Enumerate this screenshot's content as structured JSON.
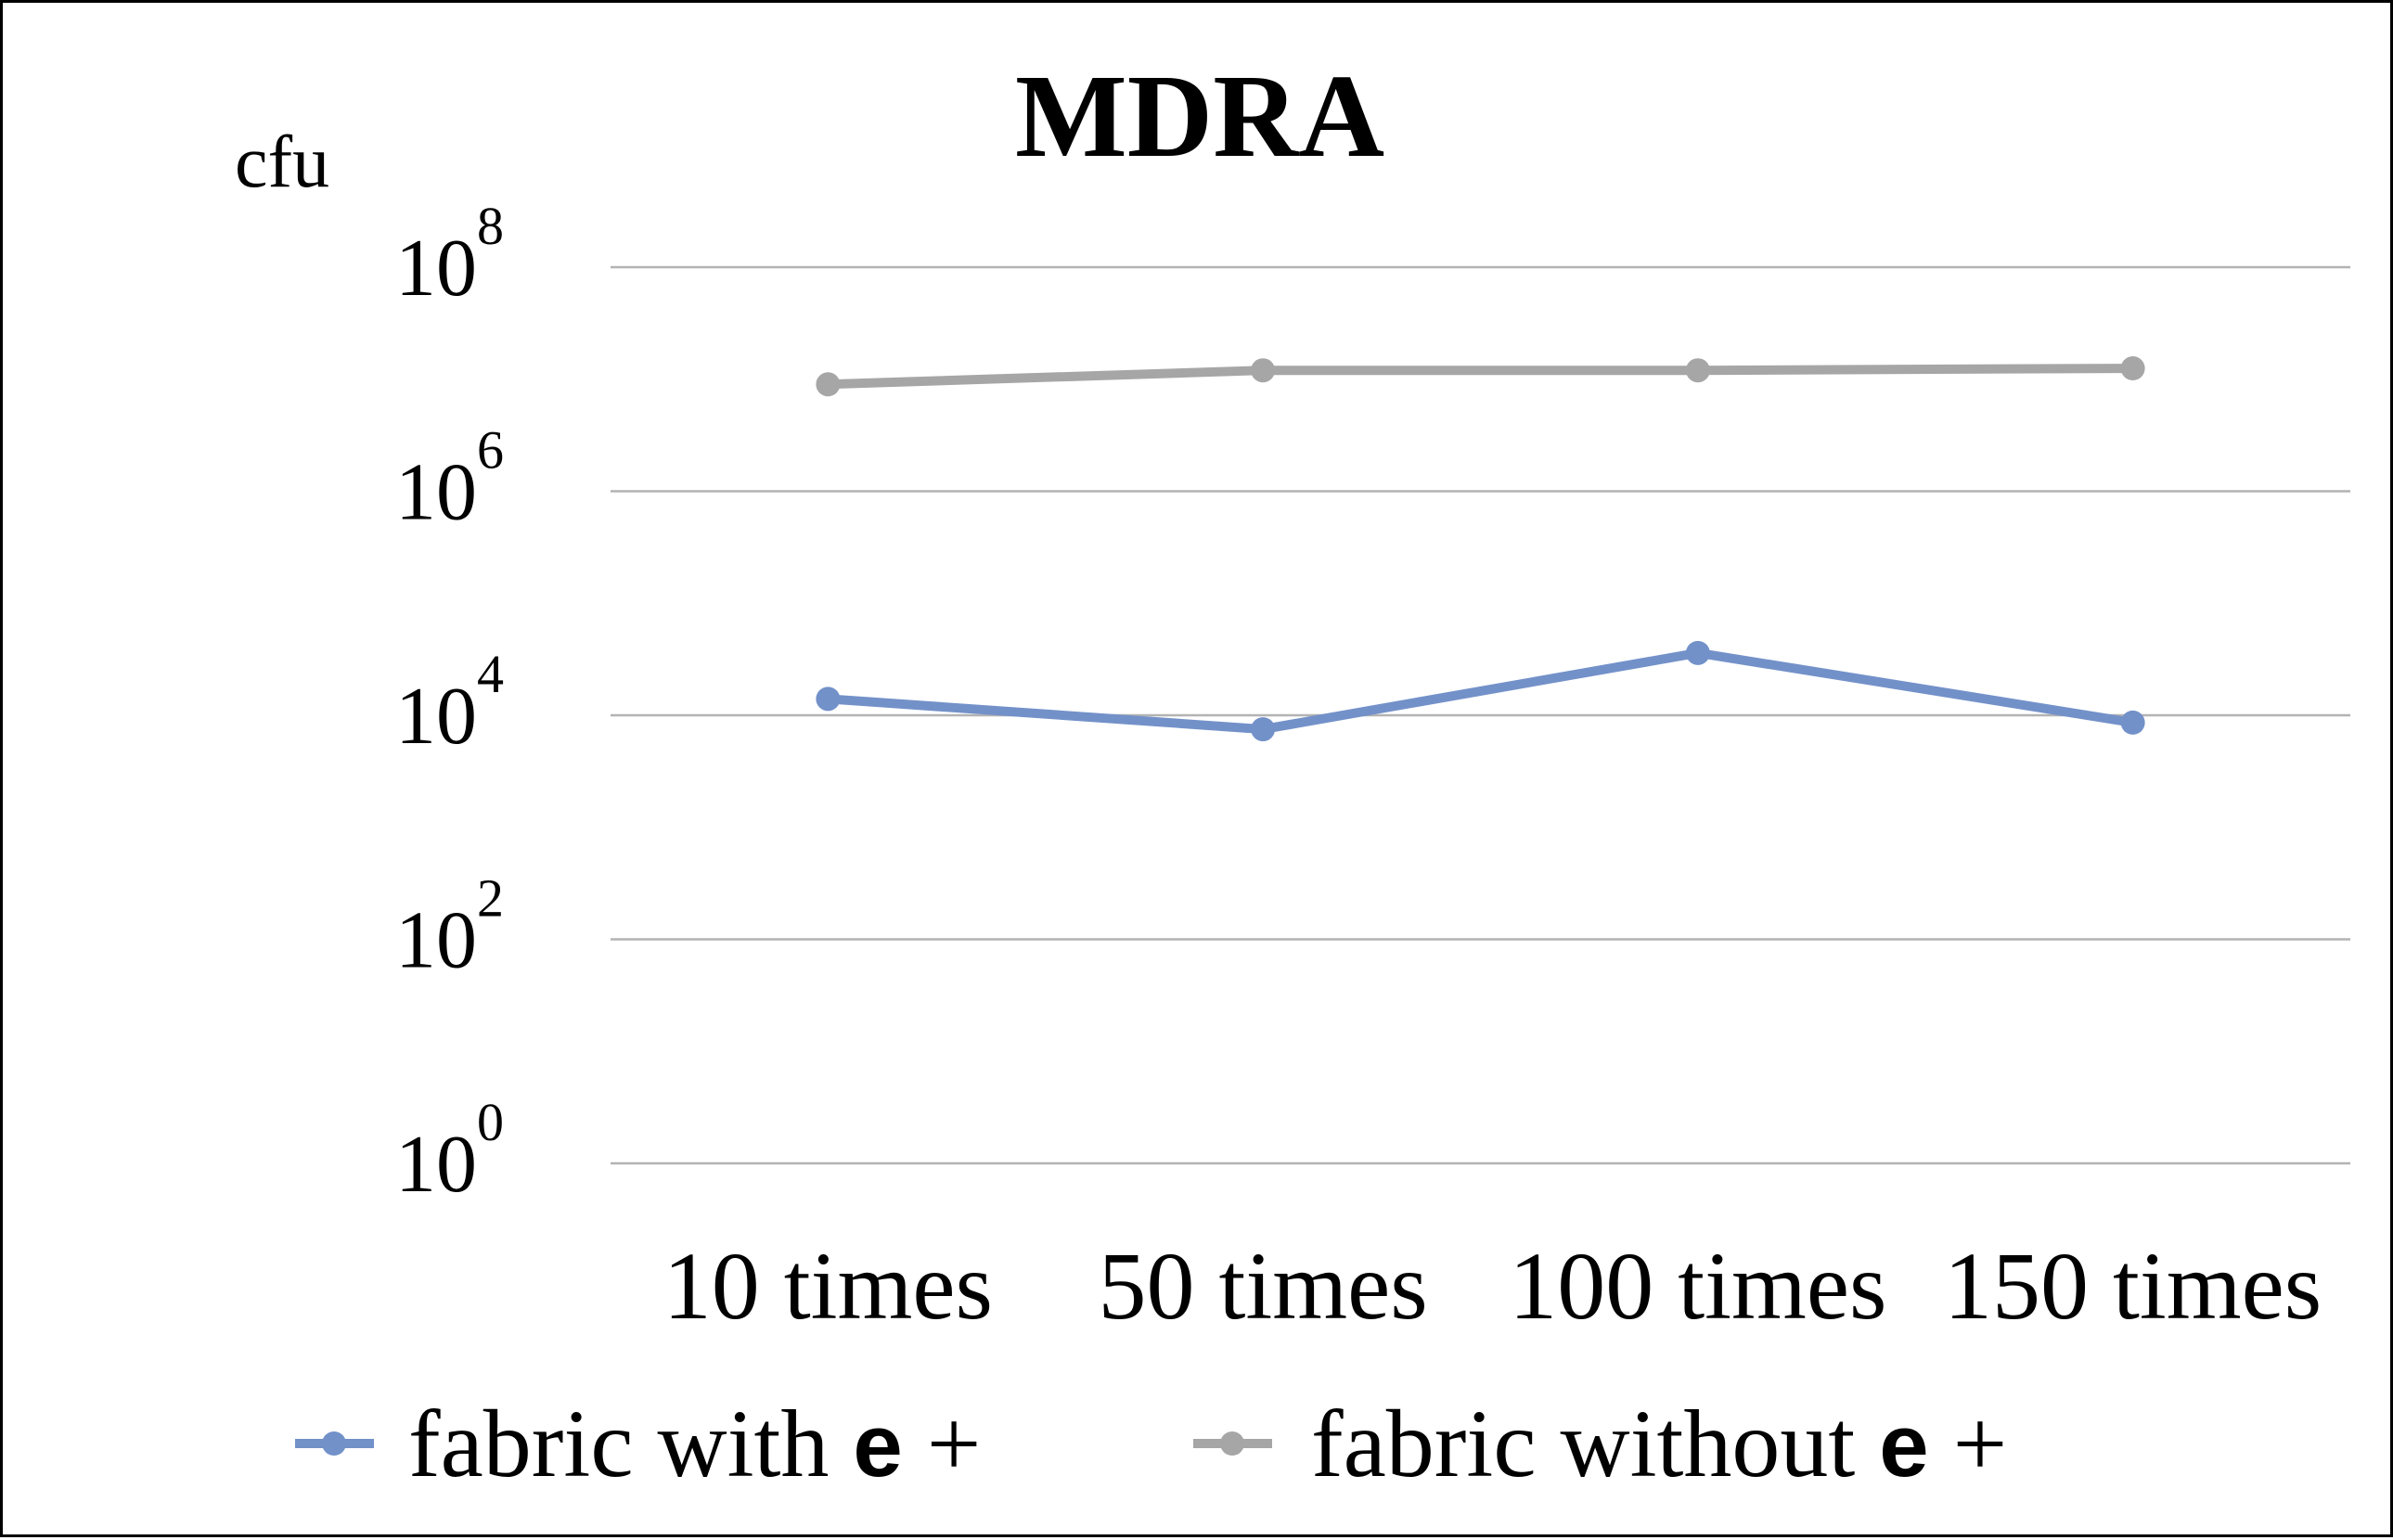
{
  "chart_data": {
    "type": "line",
    "title": "MDRA",
    "ylabel": "cfu",
    "xlabel": "",
    "y_scale": "log10",
    "ylim": [
      1,
      100000000
    ],
    "y_ticks": [
      {
        "value": 1,
        "base": "10",
        "exp": "0"
      },
      {
        "value": 100,
        "base": "10",
        "exp": "2"
      },
      {
        "value": 10000,
        "base": "10",
        "exp": "4"
      },
      {
        "value": 1000000,
        "base": "10",
        "exp": "6"
      },
      {
        "value": 100000000,
        "base": "10",
        "exp": "8"
      }
    ],
    "grid": true,
    "legend_position": "bottom",
    "categories": [
      "10 times",
      "50 times",
      "100 times",
      "150 times"
    ],
    "series": [
      {
        "name_text": "fabric with",
        "name_symbol": "e",
        "name_suffix": "+",
        "color": "#7391c9",
        "values": [
          14000,
          7500,
          36000,
          8600
        ]
      },
      {
        "name_text": "fabric without",
        "name_symbol": "e",
        "name_suffix": "+",
        "color": "#a6a6a6",
        "values": [
          9000000,
          12000000,
          12000000,
          12500000
        ]
      }
    ],
    "colors": {
      "grid": "#b3b3b3",
      "text": "#000000",
      "border": "#000000"
    }
  }
}
